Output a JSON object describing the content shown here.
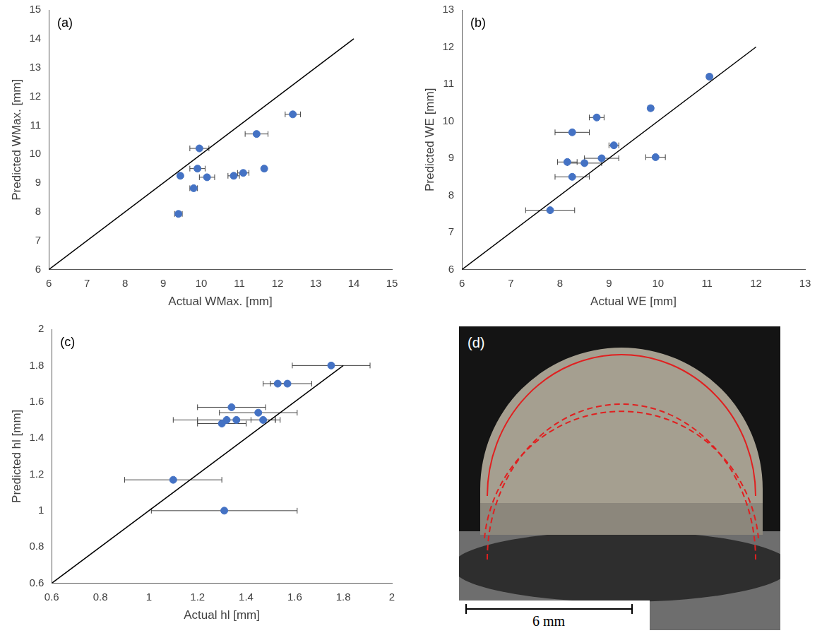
{
  "chart_data": [
    {
      "type": "scatter",
      "panel": "(a)",
      "x_label": "Actual WMax. [mm]",
      "y_label": "Predicted WMax. [mm]",
      "xlim": [
        6,
        15
      ],
      "ylim": [
        6,
        15
      ],
      "xticks": [
        6,
        7,
        8,
        9,
        10,
        11,
        12,
        13,
        14,
        15
      ],
      "yticks": [
        6,
        7,
        8,
        9,
        10,
        11,
        12,
        13,
        14,
        15
      ],
      "x": [
        9.95,
        9.45,
        9.9,
        10.15,
        9.8,
        9.4,
        10.85,
        11.1,
        11.45,
        11.65,
        12.4
      ],
      "values": [
        10.2,
        9.25,
        9.5,
        9.2,
        8.82,
        7.93,
        9.25,
        9.35,
        10.7,
        9.5,
        11.38
      ],
      "x_error": [
        0.25,
        0.05,
        0.2,
        0.2,
        0.1,
        0.1,
        0.15,
        0.15,
        0.3,
        0.05,
        0.2
      ],
      "color": "#4472c4",
      "marker": "circle",
      "grid": false,
      "reference_line": {
        "x": [
          6,
          14
        ],
        "y": [
          6,
          14
        ],
        "color": "#000000"
      }
    },
    {
      "type": "scatter",
      "panel": "(b)",
      "x_label": "Actual WE [mm]",
      "y_label": "Predicted WE [mm]",
      "xlim": [
        6,
        13
      ],
      "ylim": [
        6,
        13
      ],
      "xticks": [
        6,
        7,
        8,
        9,
        10,
        11,
        12,
        13
      ],
      "yticks": [
        6,
        7,
        8,
        9,
        10,
        11,
        12,
        13
      ],
      "x": [
        11.05,
        9.85,
        8.75,
        8.25,
        9.1,
        8.85,
        9.95,
        8.15,
        8.5,
        8.25,
        7.8
      ],
      "values": [
        11.2,
        10.35,
        10.1,
        9.7,
        9.35,
        9.0,
        9.03,
        8.9,
        8.87,
        8.5,
        7.6
      ],
      "x_error": [
        0.05,
        0.05,
        0.15,
        0.35,
        0.1,
        0.35,
        0.2,
        0.2,
        0.35,
        0.35,
        0.5
      ],
      "color": "#4472c4",
      "marker": "circle",
      "grid": false,
      "reference_line": {
        "x": [
          6,
          12
        ],
        "y": [
          6,
          12
        ],
        "color": "#000000"
      }
    },
    {
      "type": "scatter",
      "panel": "(c)",
      "x_label": "Actual hl [mm]",
      "y_label": "Predicted hl [mm]",
      "xlim": [
        0.6,
        2
      ],
      "ylim": [
        0.6,
        2
      ],
      "xticks": [
        0.6,
        0.8,
        1,
        1.2,
        1.4,
        1.6,
        1.8,
        2
      ],
      "yticks": [
        0.6,
        0.8,
        1,
        1.2,
        1.4,
        1.6,
        1.8,
        2
      ],
      "x": [
        1.75,
        1.53,
        1.57,
        1.34,
        1.45,
        1.32,
        1.36,
        1.47,
        1.3,
        1.1,
        1.31
      ],
      "values": [
        1.8,
        1.7,
        1.7,
        1.57,
        1.54,
        1.5,
        1.5,
        1.5,
        1.48,
        1.17,
        1.0
      ],
      "x_error": [
        0.16,
        0.03,
        0.1,
        0.14,
        0.16,
        0.22,
        0.16,
        0.05,
        0.1,
        0.2,
        0.3
      ],
      "color": "#4472c4",
      "marker": "circle",
      "grid": false,
      "reference_line": {
        "x": [
          0.6,
          1.8
        ],
        "y": [
          0.6,
          1.8
        ],
        "color": "#000000"
      }
    }
  ],
  "image_panel": {
    "panel": "(d)",
    "scale_bar": "6 mm"
  }
}
